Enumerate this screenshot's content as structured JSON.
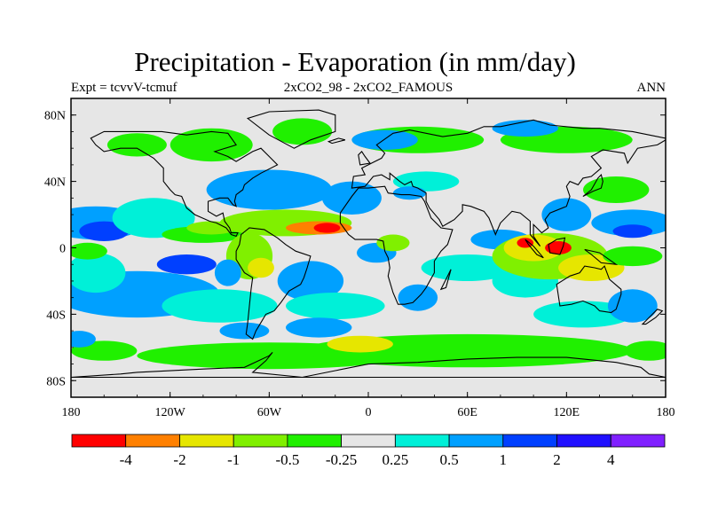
{
  "chart_data": {
    "type": "heatmap",
    "title": "Precipitation - Evaporation (in mm/day)",
    "subtitle_left": "Expt = tcvvV-tcmuf",
    "subtitle_center": "2xCO2_98 - 2xCO2_FAMOUS",
    "subtitle_right": "ANN",
    "x_ticks": [
      "180",
      "120W",
      "60W",
      "0",
      "60E",
      "120E",
      "180"
    ],
    "x_tick_values": [
      -180,
      -120,
      -60,
      0,
      60,
      120,
      180
    ],
    "y_ticks": [
      "80N",
      "40N",
      "0",
      "40S",
      "80S"
    ],
    "y_tick_values": [
      80,
      40,
      0,
      -40,
      -80
    ],
    "xlim": [
      -180,
      180
    ],
    "ylim": [
      -90,
      90
    ],
    "colorbar": {
      "labels": [
        "-4",
        "-2",
        "-1",
        "-0.5",
        "-0.25",
        "0.25",
        "0.5",
        "1",
        "2",
        "4"
      ],
      "levels": [
        -4,
        -2,
        -1,
        -0.5,
        -0.25,
        0.25,
        0.5,
        1,
        2,
        4
      ],
      "colors": [
        "#ff0000",
        "#ff8000",
        "#e6e600",
        "#80f000",
        "#20f000",
        "#e6e6e6",
        "#00f0d8",
        "#00a0ff",
        "#0040ff",
        "#2010ff",
        "#8020ff"
      ]
    },
    "colors": {
      "neutral": "#e6e6e6",
      "coast": "#000000"
    }
  }
}
